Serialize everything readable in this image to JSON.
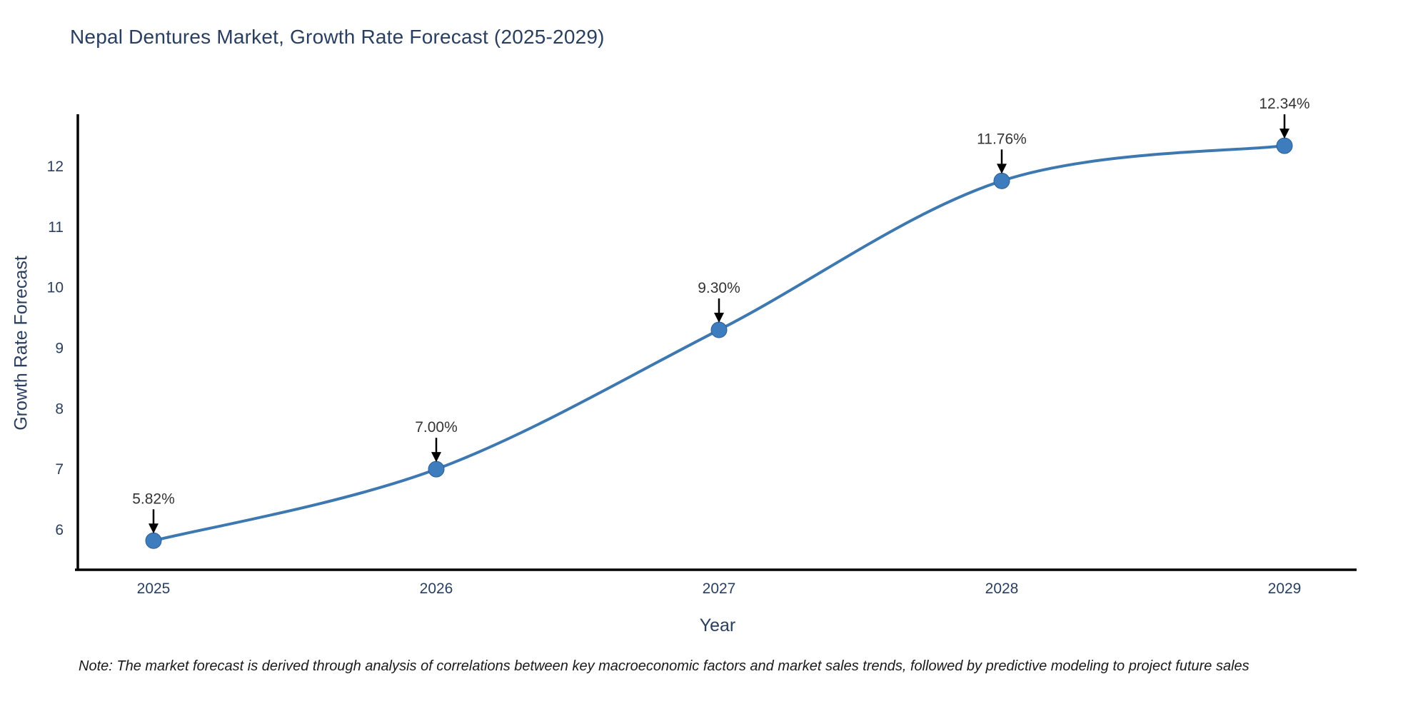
{
  "title": "Nepal Dentures Market, Growth Rate Forecast (2025-2029)",
  "note": "Note: The market forecast is derived through analysis of correlations between key macroeconomic factors and market sales trends, followed by predictive modeling to project future sales",
  "chart_data": {
    "type": "line",
    "title": "Nepal Dentures Market, Growth Rate Forecast (2025-2029)",
    "xlabel": "Year",
    "ylabel": "Growth Rate Forecast",
    "categories": [
      "2025",
      "2026",
      "2027",
      "2028",
      "2029"
    ],
    "series": [
      {
        "name": "Growth Rate Forecast",
        "values": [
          5.82,
          7.0,
          9.3,
          11.76,
          12.34
        ]
      }
    ],
    "point_labels": [
      "5.82%",
      "7.00%",
      "9.30%",
      "11.76%",
      "12.34%"
    ],
    "yticks": [
      6,
      7,
      8,
      9,
      10,
      11,
      12
    ],
    "ylim": [
      5.34,
      12.86
    ],
    "grid": false,
    "legend_position": "none",
    "smooth_line": true,
    "annotation_arrows": true,
    "colors": {
      "line": "#3e78b0",
      "marker": "#3d7cbd",
      "marker_edge": "#2d5f93",
      "axis_spine": "#000000",
      "tick_label": "#2a3f5f",
      "annotation_text": "#333333",
      "arrow": "#000000",
      "title_text": "#2a3f5f",
      "background": "#ffffff"
    }
  }
}
